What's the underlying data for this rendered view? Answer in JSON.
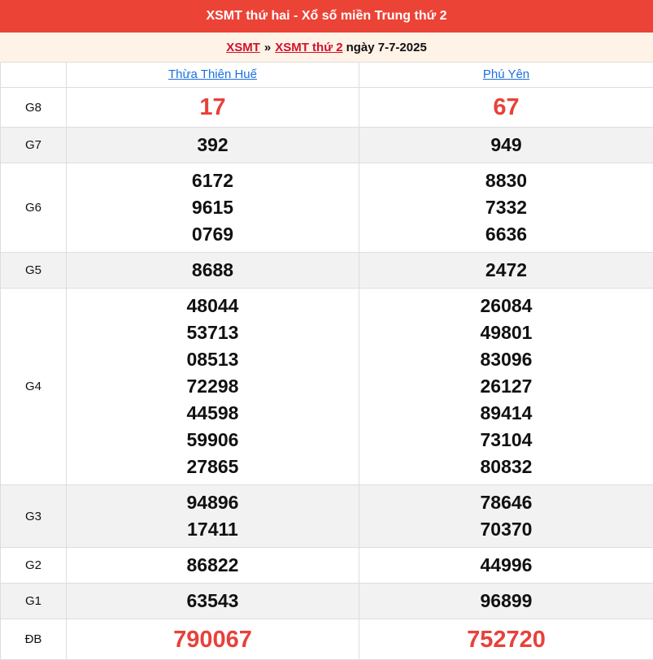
{
  "header": {
    "title": "XSMT thứ hai - Xổ số miền Trung thứ 2"
  },
  "breadcrumb": {
    "link1": "XSMT",
    "separator": "»",
    "link2": "XSMT thứ 2",
    "date_text": "ngày 7-7-2025"
  },
  "provinces": [
    "Thừa Thiên Huế",
    "Phú Yên"
  ],
  "colors": {
    "header_bg": "#ec4337",
    "breadcrumb_bg": "#fff2e6",
    "highlight": "#e8413a",
    "link": "#1a6fe0"
  },
  "prizes": [
    {
      "label": "G8",
      "p1": [
        "17"
      ],
      "p2": [
        "67"
      ]
    },
    {
      "label": "G7",
      "p1": [
        "392"
      ],
      "p2": [
        "949"
      ]
    },
    {
      "label": "G6",
      "p1": [
        "6172",
        "9615",
        "0769"
      ],
      "p2": [
        "8830",
        "7332",
        "6636"
      ]
    },
    {
      "label": "G5",
      "p1": [
        "8688"
      ],
      "p2": [
        "2472"
      ]
    },
    {
      "label": "G4",
      "p1": [
        "48044",
        "53713",
        "08513",
        "72298",
        "44598",
        "59906",
        "27865"
      ],
      "p2": [
        "26084",
        "49801",
        "83096",
        "26127",
        "89414",
        "73104",
        "80832"
      ]
    },
    {
      "label": "G3",
      "p1": [
        "94896",
        "17411"
      ],
      "p2": [
        "78646",
        "70370"
      ]
    },
    {
      "label": "G2",
      "p1": [
        "86822"
      ],
      "p2": [
        "44996"
      ]
    },
    {
      "label": "G1",
      "p1": [
        "63543"
      ],
      "p2": [
        "96899"
      ]
    },
    {
      "label": "ĐB",
      "p1": [
        "790067"
      ],
      "p2": [
        "752720"
      ]
    }
  ]
}
